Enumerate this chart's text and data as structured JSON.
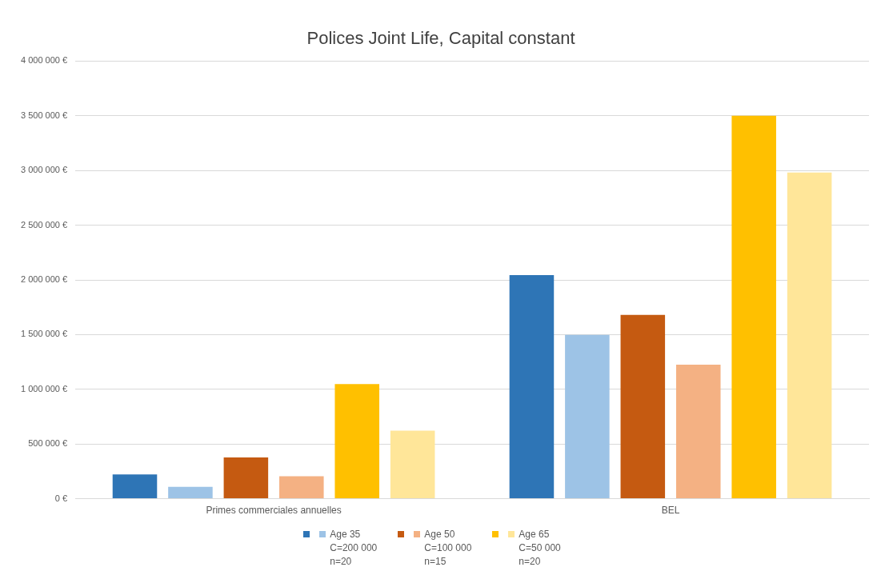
{
  "chart_data": {
    "type": "bar",
    "title": "Polices Joint Life, Capital constant",
    "categories": [
      "Primes commerciales annuelles",
      "BEL"
    ],
    "series": [
      {
        "color": "#2e75b6",
        "values": [
          222000,
          2043000
        ]
      },
      {
        "name": "Age 35\nC=200 000\nn=20",
        "color": "#9dc3e6",
        "values": [
          108000,
          1498000
        ]
      },
      {
        "color": "#c55a11",
        "values": [
          378000,
          1680000
        ]
      },
      {
        "name": "Age 50\nC=100 000\nn=15",
        "color": "#f4b183",
        "values": [
          206000,
          1226000
        ]
      },
      {
        "color": "#ffc000",
        "values": [
          1047000,
          3500000
        ]
      },
      {
        "name": "Age 65\nC=50 000\nn=20",
        "color": "#ffe699",
        "values": [
          622000,
          2982000
        ]
      }
    ],
    "ylim": [
      0,
      4000000
    ],
    "yticks": [
      {
        "value": 0,
        "label": "0 €"
      },
      {
        "value": 500000,
        "label": "500 000 €"
      },
      {
        "value": 1000000,
        "label": "1 000 000 €"
      },
      {
        "value": 1500000,
        "label": "1 500 000 €"
      },
      {
        "value": 2000000,
        "label": "2 000 000 €"
      },
      {
        "value": 2500000,
        "label": "2 500 000 €"
      },
      {
        "value": 3000000,
        "label": "3 000 000 €"
      },
      {
        "value": 3500000,
        "label": "3 500 000 €"
      },
      {
        "value": 4000000,
        "label": "4 000 000 €"
      }
    ],
    "grid": "y",
    "legend": "bottom"
  }
}
